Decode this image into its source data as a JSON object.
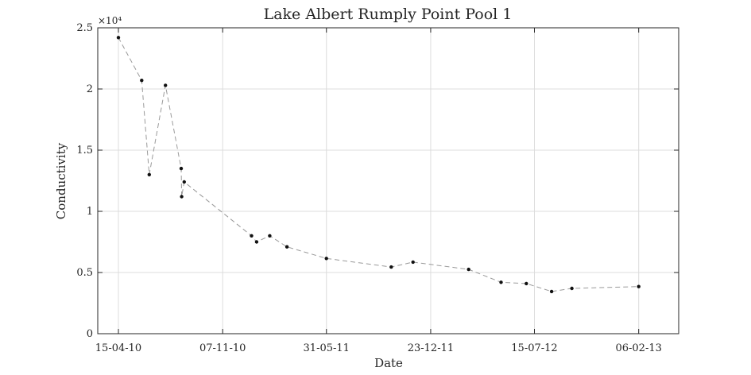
{
  "chart_data": {
    "type": "line",
    "title": "Lake Albert Rumply Point Pool 1",
    "xlabel": "Date",
    "ylabel": "Conductivity",
    "y_exponent_label": "×10⁴",
    "y_multiplier": 10000,
    "ylim": [
      0,
      25000
    ],
    "xlim": [
      "2010-04-15",
      "2013-04-26"
    ],
    "grid": true,
    "legend": "none",
    "line_style": "dashed",
    "line_color": "#9a9a9a",
    "marker_color": "#111111",
    "x_ticks": [
      {
        "date": "2010-04-15",
        "label": "15-04-10"
      },
      {
        "date": "2010-11-07",
        "label": "07-11-10"
      },
      {
        "date": "2011-05-31",
        "label": "31-05-11"
      },
      {
        "date": "2011-12-23",
        "label": "23-12-11"
      },
      {
        "date": "2012-07-15",
        "label": "15-07-12"
      },
      {
        "date": "2013-02-06",
        "label": "06-02-13"
      }
    ],
    "y_ticks": [
      {
        "value": 0,
        "label": "0"
      },
      {
        "value": 5000,
        "label": "0.5"
      },
      {
        "value": 10000,
        "label": "1"
      },
      {
        "value": 15000,
        "label": "1.5"
      },
      {
        "value": 20000,
        "label": "2"
      },
      {
        "value": 25000,
        "label": "2.5"
      }
    ],
    "series": [
      {
        "points": [
          {
            "x": "2010-04-15",
            "y": 24200
          },
          {
            "x": "2010-05-31",
            "y": 20700
          },
          {
            "x": "2010-06-15",
            "y": 13000
          },
          {
            "x": "2010-07-17",
            "y": 20300
          },
          {
            "x": "2010-08-17",
            "y": 13500
          },
          {
            "x": "2010-08-18",
            "y": 11200
          },
          {
            "x": "2010-08-23",
            "y": 12400
          },
          {
            "x": "2011-01-03",
            "y": 8000
          },
          {
            "x": "2011-01-13",
            "y": 7500
          },
          {
            "x": "2011-02-08",
            "y": 8000
          },
          {
            "x": "2011-03-14",
            "y": 7100
          },
          {
            "x": "2011-05-31",
            "y": 6150
          },
          {
            "x": "2011-10-06",
            "y": 5450
          },
          {
            "x": "2011-11-18",
            "y": 5850
          },
          {
            "x": "2012-03-07",
            "y": 5250
          },
          {
            "x": "2012-05-10",
            "y": 4200
          },
          {
            "x": "2012-06-29",
            "y": 4100
          },
          {
            "x": "2012-08-18",
            "y": 3450
          },
          {
            "x": "2012-09-27",
            "y": 3700
          },
          {
            "x": "2013-02-06",
            "y": 3850
          }
        ]
      }
    ]
  }
}
